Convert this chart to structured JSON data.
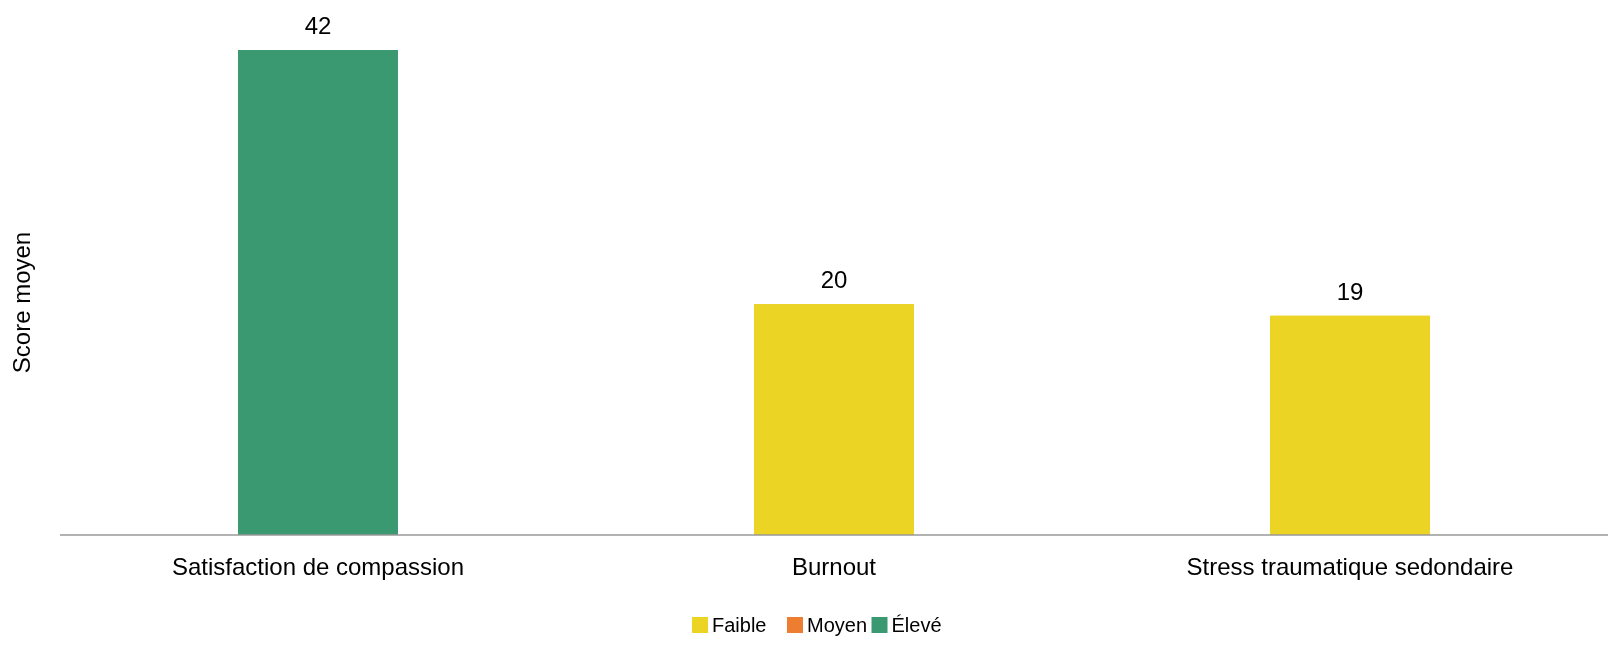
{
  "chart_data": {
    "type": "bar",
    "ylabel": "Score moyen",
    "categories": [
      "Satisfaction de compassion",
      "Burnout",
      "Stress traumatique sedondaire"
    ],
    "stacked": true,
    "relative": false,
    "data_labels": true,
    "legend": "bottom",
    "series": [
      {
        "name": "Faible",
        "color": "#ebd424",
        "values": [
          null,
          20,
          19
        ]
      },
      {
        "name": "Moyen",
        "color": "#ed7d31",
        "values": [
          null,
          null,
          null
        ]
      },
      {
        "name": "Élevé",
        "color": "#3a9970",
        "values": [
          42,
          null,
          null
        ]
      }
    ]
  }
}
